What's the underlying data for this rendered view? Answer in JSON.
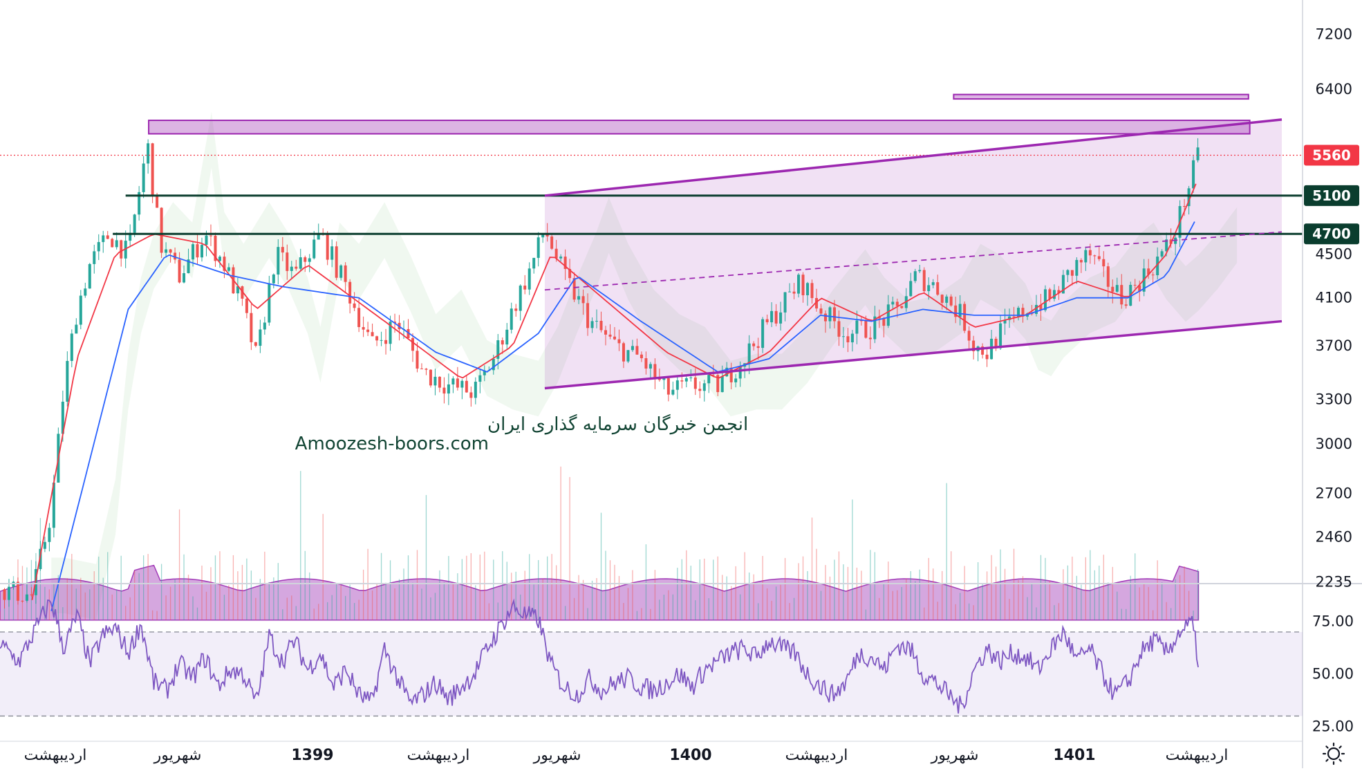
{
  "chart_data": [
    {
      "type": "candlestick",
      "scale": "log",
      "ylim": [
        2050,
        7700
      ],
      "price_axis_ticks": [
        "7200",
        "6400",
        "5560",
        "5100",
        "4700",
        "4500",
        "4100",
        "3700",
        "3300",
        "3000",
        "2700",
        "2460",
        "2235"
      ],
      "price_tags": [
        {
          "value": "5560",
          "color": "#f23645"
        },
        {
          "value": "5100",
          "color": "#0a3d2e"
        },
        {
          "value": "4700",
          "color": "#0a3d2e"
        }
      ],
      "last_price_line": 5560,
      "horizontal_levels": [
        5100,
        4700
      ],
      "resistance_zones": [
        {
          "low": 5820,
          "high": 5990
        },
        {
          "low": 6270,
          "high": 6330
        }
      ],
      "channel": {
        "upper": [
          [
            42.5,
            5100
          ],
          [
            100,
            6000
          ]
        ],
        "lower": [
          [
            42.5,
            3380
          ],
          [
            100,
            3900
          ]
        ],
        "midline_dashed": [
          [
            42.5,
            4170
          ],
          [
            100,
            4720
          ]
        ]
      },
      "price_path_approx": [
        [
          0,
          2200
        ],
        [
          2.5,
          2170
        ],
        [
          4,
          2600
        ],
        [
          5,
          3400
        ],
        [
          6,
          4000
        ],
        [
          7,
          4400
        ],
        [
          8.5,
          4700
        ],
        [
          10,
          4500
        ],
        [
          11.5,
          5700
        ],
        [
          12.5,
          4600
        ],
        [
          14,
          4300
        ],
        [
          16,
          4700
        ],
        [
          17.5,
          4400
        ],
        [
          19,
          4000
        ],
        [
          20,
          3600
        ],
        [
          21.5,
          4500
        ],
        [
          23,
          4300
        ],
        [
          25,
          4700
        ],
        [
          27,
          4200
        ],
        [
          29,
          3700
        ],
        [
          31,
          3900
        ],
        [
          33,
          3500
        ],
        [
          35,
          3400
        ],
        [
          37,
          3350
        ],
        [
          38.5,
          3600
        ],
        [
          40,
          4000
        ],
        [
          41.5,
          4400
        ],
        [
          42.5,
          4750
        ],
        [
          44,
          4300
        ],
        [
          46,
          3900
        ],
        [
          48,
          3700
        ],
        [
          50,
          3600
        ],
        [
          52,
          3350
        ],
        [
          54,
          3400
        ],
        [
          56,
          3400
        ],
        [
          58,
          3600
        ],
        [
          60,
          3900
        ],
        [
          62.5,
          4250
        ],
        [
          64,
          4000
        ],
        [
          66,
          3800
        ],
        [
          68,
          3850
        ],
        [
          70,
          4000
        ],
        [
          71.5,
          4300
        ],
        [
          73,
          4200
        ],
        [
          75,
          3950
        ],
        [
          76,
          3700
        ],
        [
          77,
          3650
        ],
        [
          78,
          3800
        ],
        [
          80,
          4000
        ],
        [
          82,
          4100
        ],
        [
          84,
          4400
        ],
        [
          85,
          4500
        ],
        [
          86,
          4300
        ],
        [
          87.5,
          4100
        ],
        [
          88.5,
          4200
        ],
        [
          90,
          4400
        ],
        [
          91.5,
          4650
        ],
        [
          92.5,
          5100
        ],
        [
          93.5,
          5560
        ]
      ],
      "moving_averages": [
        {
          "color": "#f23645",
          "path_approx": [
            [
              2.5,
              2150
            ],
            [
              6,
              3600
            ],
            [
              9,
              4500
            ],
            [
              12,
              4700
            ],
            [
              16,
              4600
            ],
            [
              20,
              4000
            ],
            [
              24,
              4400
            ],
            [
              30,
              3900
            ],
            [
              36,
              3450
            ],
            [
              40,
              3700
            ],
            [
              43,
              4500
            ],
            [
              47,
              4100
            ],
            [
              52,
              3650
            ],
            [
              56,
              3450
            ],
            [
              60,
              3650
            ],
            [
              64,
              4100
            ],
            [
              68,
              3900
            ],
            [
              72,
              4150
            ],
            [
              76,
              3850
            ],
            [
              80,
              3950
            ],
            [
              84,
              4250
            ],
            [
              88,
              4100
            ],
            [
              91,
              4500
            ],
            [
              93.5,
              5300
            ]
          ]
        },
        {
          "color": "#2962ff",
          "path_approx": [
            [
              4,
              2100
            ],
            [
              7,
              2900
            ],
            [
              10,
              4000
            ],
            [
              13,
              4500
            ],
            [
              18,
              4300
            ],
            [
              22,
              4200
            ],
            [
              28,
              4100
            ],
            [
              34,
              3650
            ],
            [
              38,
              3500
            ],
            [
              42,
              3800
            ],
            [
              45,
              4300
            ],
            [
              50,
              3900
            ],
            [
              56,
              3500
            ],
            [
              60,
              3600
            ],
            [
              64,
              3950
            ],
            [
              68,
              3900
            ],
            [
              72,
              4000
            ],
            [
              76,
              3950
            ],
            [
              80,
              3950
            ],
            [
              84,
              4100
            ],
            [
              88,
              4100
            ],
            [
              91,
              4300
            ],
            [
              93.5,
              4900
            ]
          ]
        }
      ],
      "cloud_color": "#81c784",
      "volume_panel": {
        "color": "#a23bb8"
      },
      "watermark": [
        "انجمن خبرگان سرمایه گذاری ایران",
        "Amoozesh-boors.com"
      ]
    },
    {
      "type": "line",
      "indicator": "RSI",
      "ylim": [
        18,
        93
      ],
      "yticks": [
        "75.00",
        "50.00",
        "25.00"
      ],
      "band": [
        30,
        70
      ],
      "color": "#7e57c2",
      "values_approx": [
        [
          0,
          64
        ],
        [
          1.5,
          56
        ],
        [
          3,
          74
        ],
        [
          4,
          85
        ],
        [
          5,
          62
        ],
        [
          6,
          78
        ],
        [
          7,
          55
        ],
        [
          8,
          68
        ],
        [
          9,
          72
        ],
        [
          10,
          60
        ],
        [
          11,
          74
        ],
        [
          12,
          46
        ],
        [
          13,
          42
        ],
        [
          14,
          55
        ],
        [
          15,
          48
        ],
        [
          16,
          58
        ],
        [
          17,
          44
        ],
        [
          18,
          52
        ],
        [
          19,
          50
        ],
        [
          20,
          36
        ],
        [
          21,
          68
        ],
        [
          22,
          56
        ],
        [
          23,
          66
        ],
        [
          24,
          52
        ],
        [
          25,
          60
        ],
        [
          26,
          44
        ],
        [
          27,
          52
        ],
        [
          28,
          40
        ],
        [
          29,
          36
        ],
        [
          30,
          62
        ],
        [
          31,
          48
        ],
        [
          32,
          36
        ],
        [
          33,
          40
        ],
        [
          34,
          46
        ],
        [
          35,
          38
        ],
        [
          36,
          44
        ],
        [
          37,
          50
        ],
        [
          38,
          62
        ],
        [
          39,
          72
        ],
        [
          40,
          82
        ],
        [
          41,
          78
        ],
        [
          42,
          76
        ],
        [
          43,
          54
        ],
        [
          44,
          44
        ],
        [
          45,
          40
        ],
        [
          46,
          48
        ],
        [
          47,
          42
        ],
        [
          48,
          46
        ],
        [
          49,
          48
        ],
        [
          50,
          44
        ],
        [
          51,
          42
        ],
        [
          52,
          46
        ],
        [
          53,
          50
        ],
        [
          54,
          44
        ],
        [
          55,
          52
        ],
        [
          56,
          56
        ],
        [
          57,
          60
        ],
        [
          58,
          62
        ],
        [
          59,
          58
        ],
        [
          60,
          66
        ],
        [
          61,
          62
        ],
        [
          62,
          60
        ],
        [
          63,
          50
        ],
        [
          64,
          44
        ],
        [
          65,
          40
        ],
        [
          66,
          46
        ],
        [
          67,
          60
        ],
        [
          68,
          58
        ],
        [
          69,
          52
        ],
        [
          70,
          64
        ],
        [
          71,
          62
        ],
        [
          72,
          50
        ],
        [
          73,
          46
        ],
        [
          74,
          40
        ],
        [
          75,
          34
        ],
        [
          76,
          52
        ],
        [
          77,
          62
        ],
        [
          78,
          56
        ],
        [
          79,
          60
        ],
        [
          80,
          58
        ],
        [
          81,
          52
        ],
        [
          82,
          62
        ],
        [
          83,
          70
        ],
        [
          84,
          56
        ],
        [
          85,
          62
        ],
        [
          86,
          50
        ],
        [
          87,
          40
        ],
        [
          88,
          46
        ],
        [
          89,
          60
        ],
        [
          90,
          66
        ],
        [
          91,
          60
        ],
        [
          92,
          70
        ],
        [
          93,
          74
        ],
        [
          93.5,
          56
        ]
      ]
    }
  ],
  "time_axis": [
    "اردیبهشت",
    "شهریور",
    "1399",
    "اردیبهشت",
    "شهریور",
    "1400",
    "اردیبهشت",
    "شهریور",
    "1401",
    "اردیبهشت"
  ],
  "time_axis_bold": [
    "1399",
    "1400",
    "1401"
  ],
  "icons": {
    "settings": "sun-gear-icon"
  },
  "colors": {
    "up": "#26a69a",
    "down": "#ef5350",
    "channel": "#9c27b0",
    "level": "#0a3d2e",
    "last_price": "#f23645"
  }
}
